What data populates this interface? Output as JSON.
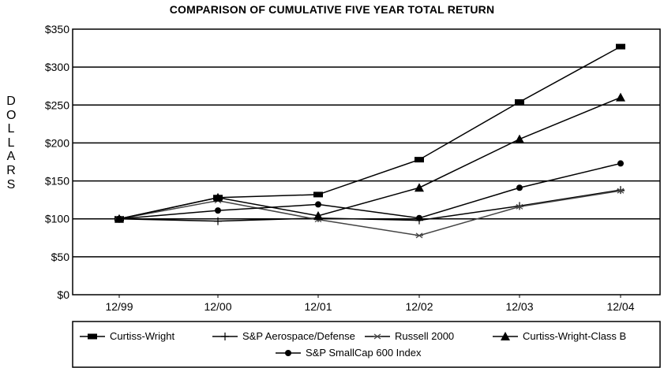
{
  "chart_data": {
    "type": "line",
    "title": "COMPARISON OF CUMULATIVE FIVE YEAR TOTAL RETURN",
    "xlabel": "",
    "ylabel": "DOLLARS",
    "categories": [
      "12/99",
      "12/00",
      "12/01",
      "12/02",
      "12/03",
      "12/04"
    ],
    "ylim": [
      0,
      350
    ],
    "yticks": [
      "$0",
      "$50",
      "$100",
      "$150",
      "$200",
      "$250",
      "$300",
      "$350"
    ],
    "grid": "horizontal",
    "legend_position": "bottom",
    "series": [
      {
        "name": "Curtiss-Wright",
        "marker": "square",
        "values": [
          100,
          128,
          132,
          178,
          254,
          327
        ]
      },
      {
        "name": "S&P Aerospace/Defense",
        "marker": "plus",
        "values": [
          100,
          97,
          101,
          98,
          117,
          138
        ]
      },
      {
        "name": "Russell 2000",
        "marker": "x",
        "values": [
          100,
          124,
          99,
          78,
          116,
          137
        ]
      },
      {
        "name": "Curtiss-Wright-Class B",
        "marker": "triangle",
        "values": [
          100,
          128,
          104,
          141,
          205,
          260
        ]
      },
      {
        "name": "S&P SmallCap 600 Index",
        "marker": "circle",
        "values": [
          100,
          111,
          119,
          101,
          141,
          173
        ]
      }
    ]
  }
}
